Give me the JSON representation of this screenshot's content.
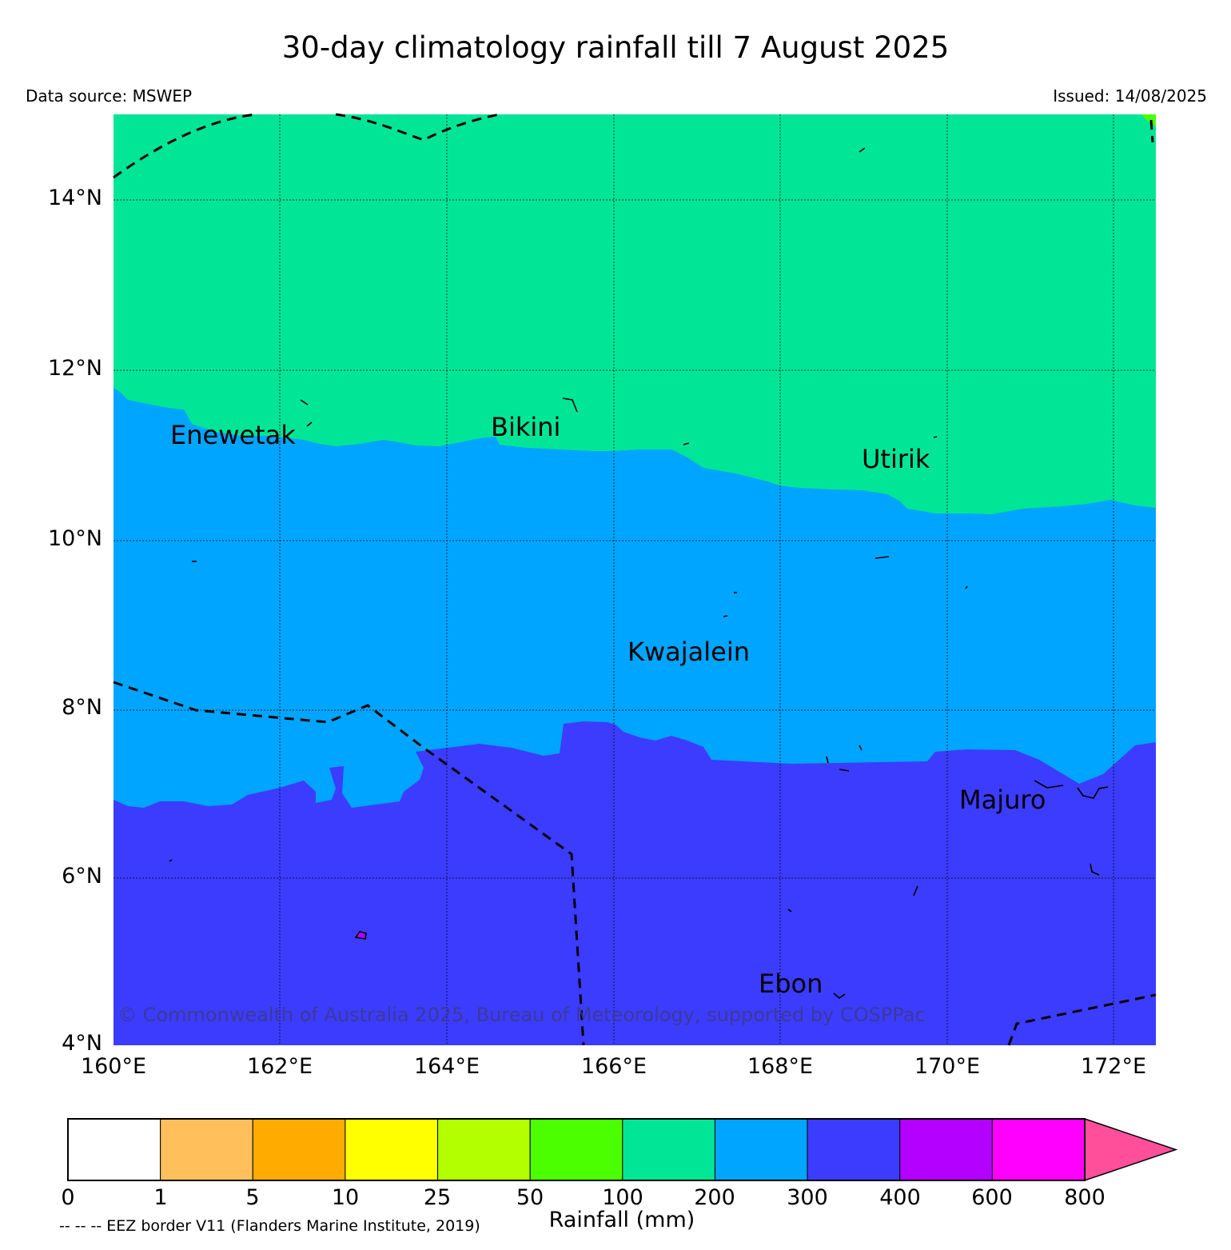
{
  "header": {
    "title": "30-day climatology rainfall till 7 August 2025",
    "data_source": "Data source: MSWEP",
    "issued": "Issued: 14/08/2025"
  },
  "axes": {
    "lat_ticks": [
      "14°N",
      "12°N",
      "10°N",
      "8°N",
      "6°N",
      "4°N"
    ],
    "lon_ticks": [
      "160°E",
      "162°E",
      "164°E",
      "166°E",
      "168°E",
      "170°E",
      "172°E"
    ],
    "lat_range": [
      4,
      15
    ],
    "lon_range": [
      160,
      172.5
    ]
  },
  "places": [
    {
      "name": "Enewetak"
    },
    {
      "name": "Bikini"
    },
    {
      "name": "Utirik"
    },
    {
      "name": "Kwajalein"
    },
    {
      "name": "Majuro"
    },
    {
      "name": "Ebon"
    }
  ],
  "copyright": "© Commonwealth of Australia 2025, Bureau of Meteorology, supported by COSPPac",
  "colorbar": {
    "label": "Rainfall (mm)",
    "ticks": [
      "0",
      "1",
      "5",
      "10",
      "25",
      "50",
      "100",
      "200",
      "300",
      "400",
      "600",
      "800"
    ],
    "colors": [
      "#ffffff",
      "#ffbf5a",
      "#ffab00",
      "#ffff00",
      "#b3ff00",
      "#4cff00",
      "#00e696",
      "#00a5ff",
      "#3c3cff",
      "#b300ff",
      "#ff00ff",
      "#ff4f9a"
    ]
  },
  "legend_note": "-- -- -- EEZ border V11 (Flanders Marine Institute, 2019)"
}
